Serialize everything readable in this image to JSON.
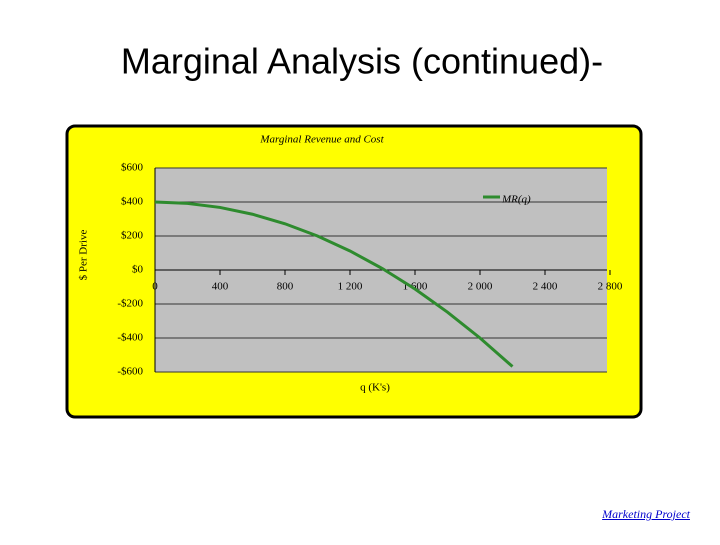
{
  "slide_title": "Marginal Analysis (continued)-",
  "footer_link": "Marketing Project",
  "chart_data": {
    "type": "line",
    "title": "Marginal Revenue and Cost",
    "x_label": "q (K's)",
    "y_label": "$ Per Drive",
    "x": [
      0,
      200,
      400,
      600,
      800,
      1000,
      1200,
      1400,
      1600,
      1800,
      2000,
      2200
    ],
    "series": [
      {
        "name": "MR(q)",
        "color": "#2e8b2e",
        "values": [
          400,
          392,
          368,
          328,
          272,
          200,
          112,
          8,
          -112,
          -248,
          -400,
          -568
        ]
      }
    ],
    "xlim": [
      0,
      2800
    ],
    "xticks": [
      0,
      400,
      800,
      {
        "value": 1200,
        "label": "1 200"
      },
      {
        "value": 1600,
        "label": "1 600"
      },
      {
        "value": 2000,
        "label": "2 000"
      },
      {
        "value": 2400,
        "label": "2 400"
      },
      {
        "value": 2800,
        "label": "2 800"
      }
    ],
    "ylim": [
      -600,
      600
    ],
    "yticks": [
      {
        "value": -600,
        "label": "-$600"
      },
      {
        "value": -400,
        "label": "-$400"
      },
      {
        "value": -200,
        "label": "-$200"
      },
      {
        "value": 0,
        "label": "$0"
      },
      {
        "value": 200,
        "label": "$200"
      },
      {
        "value": 400,
        "label": "$400"
      },
      {
        "value": 600,
        "label": "$600"
      }
    ],
    "grid": true,
    "legend": "top-right"
  }
}
